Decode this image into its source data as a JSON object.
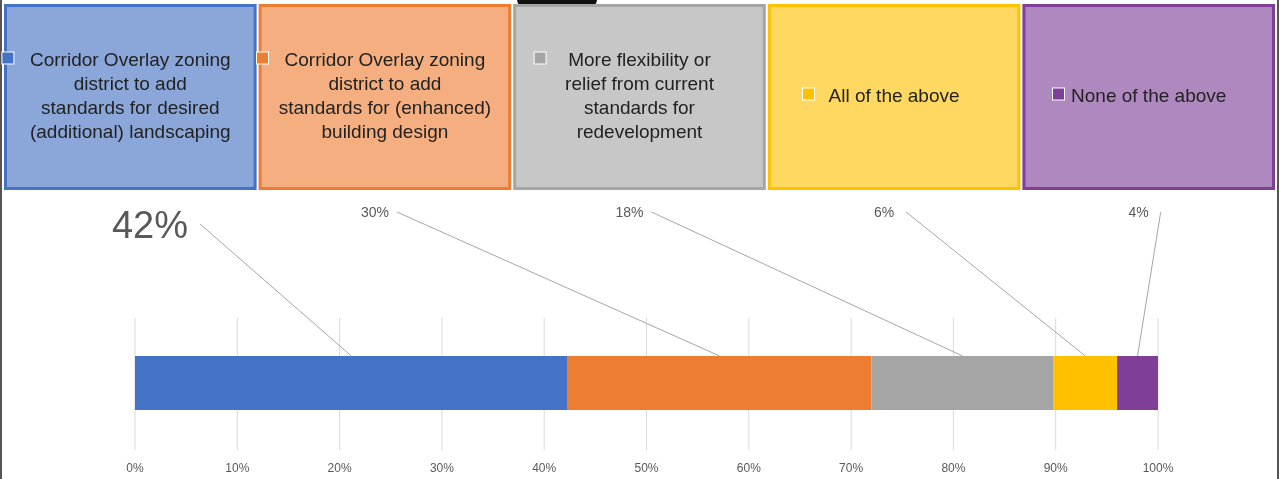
{
  "chart_data": {
    "type": "bar",
    "orientation": "horizontal",
    "stacked": true,
    "categories": [
      null
    ],
    "series": [
      {
        "name": "Corridor Overlay zoning district to add standards for desired (additional) landscaping",
        "color": "#4472c4",
        "values": [
          42.3
        ],
        "value_labels": [
          "42%"
        ]
      },
      {
        "name": "Corridor Overlay zoning district to add standards for (enhanced) building design",
        "color": "#ed7d31",
        "values": [
          29.7
        ],
        "value_labels": [
          "30%"
        ]
      },
      {
        "name": "More flexibility or relief from current standards for redevelopment",
        "color": "#a5a5a5",
        "values": [
          17.8
        ],
        "value_labels": [
          "18%"
        ]
      },
      {
        "name": "All of the above",
        "color": "#ffc000",
        "values": [
          6.2
        ],
        "value_labels": [
          "6%"
        ]
      },
      {
        "name": "None of the above",
        "color": "#7f3f98",
        "values": [
          4
        ],
        "value_labels": [
          "4%"
        ]
      }
    ],
    "xlim": [
      0,
      100
    ],
    "xticks": [
      {
        "value": 0,
        "label": "0%"
      },
      {
        "value": 10,
        "label": "10%"
      },
      {
        "value": 20,
        "label": "20%"
      },
      {
        "value": 30,
        "label": "30%"
      },
      {
        "value": 40,
        "label": "40%"
      },
      {
        "value": 50,
        "label": "50%"
      },
      {
        "value": 60,
        "label": "60%"
      },
      {
        "value": 70,
        "label": "70%"
      },
      {
        "value": 80,
        "label": "80%"
      },
      {
        "value": 90,
        "label": "90%"
      },
      {
        "value": 100,
        "label": "100%"
      }
    ],
    "grid": "x",
    "legend": "top"
  }
}
